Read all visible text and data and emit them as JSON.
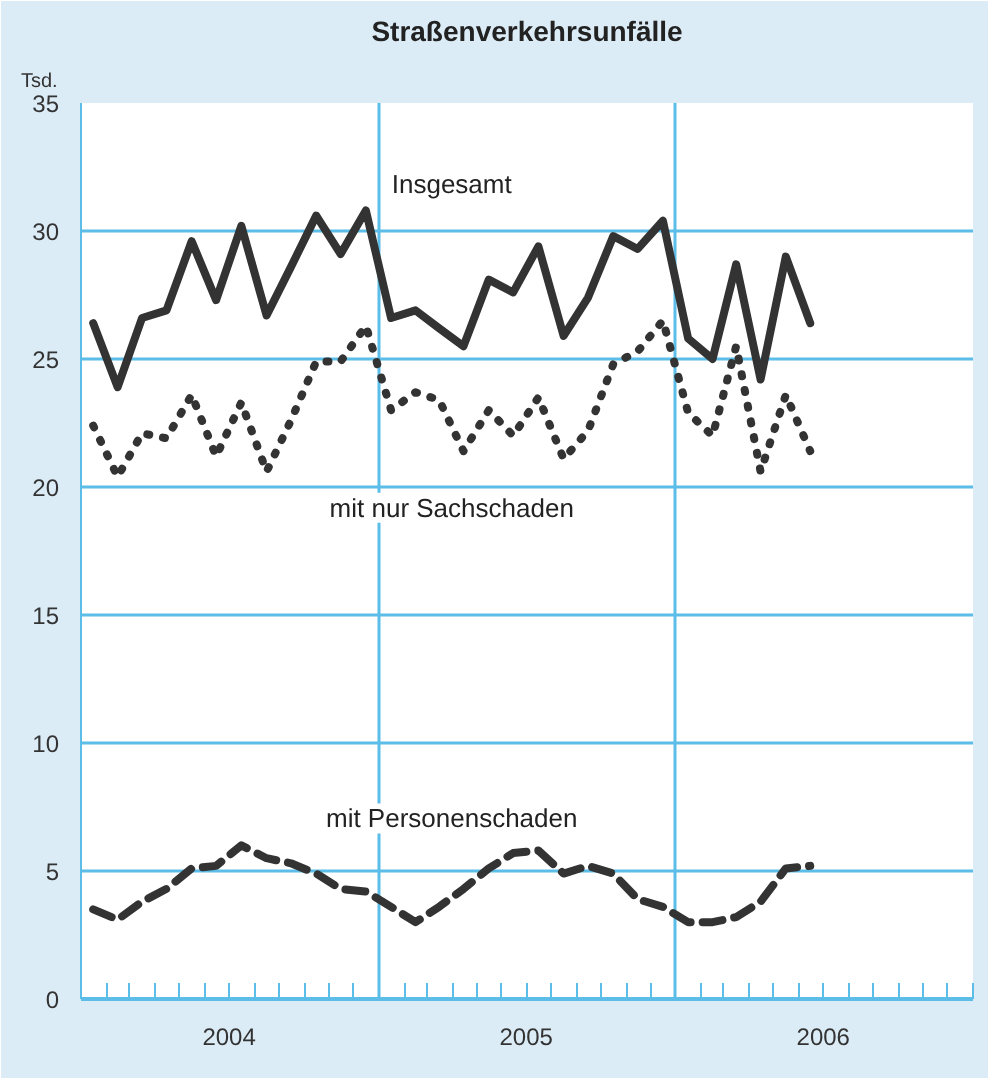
{
  "chart_data": {
    "type": "line",
    "title": "Straßenverkehrsunfälle",
    "ylabel": "Tsd.",
    "x": [
      "2004-01-16",
      "2004-02-15",
      "2004-03-16",
      "2004-04-15",
      "2004-05-16",
      "2004-06-15",
      "2004-07-16",
      "2004-08-16",
      "2004-09-15",
      "2004-10-16",
      "2004-11-15",
      "2004-12-16",
      "2005-01-16",
      "2005-02-15",
      "2005-03-16",
      "2005-04-15",
      "2005-05-16",
      "2005-06-15",
      "2005-07-16",
      "2005-08-16",
      "2005-09-15",
      "2005-10-16",
      "2005-11-15",
      "2005-12-16",
      "2006-01-16",
      "2006-02-15",
      "2006-03-16",
      "2006-04-15",
      "2006-05-16",
      "2006-06-15"
    ],
    "series": [
      {
        "name": "Insgesamt",
        "color": "#333333",
        "line_style": "solid",
        "values": [
          26.4,
          23.9,
          26.6,
          26.9,
          29.6,
          27.3,
          30.2,
          26.7,
          28.6,
          30.6,
          29.1,
          30.8,
          26.6,
          26.9,
          26.2,
          25.5,
          28.1,
          27.6,
          29.4,
          25.9,
          27.4,
          29.8,
          29.3,
          30.4,
          25.8,
          25.0,
          28.7,
          24.2,
          29.0,
          26.4
        ]
      },
      {
        "name": "mit nur Sachschaden",
        "color": "#333333",
        "line_style": "dotted",
        "values": [
          22.4,
          20.4,
          22.1,
          21.9,
          23.6,
          21.2,
          23.3,
          20.6,
          22.6,
          24.9,
          24.9,
          26.3,
          23.0,
          23.7,
          23.4,
          21.4,
          23.0,
          22.0,
          23.5,
          21.1,
          22.2,
          24.8,
          25.3,
          26.5,
          22.9,
          22.0,
          25.5,
          20.6,
          23.6,
          21.4
        ]
      },
      {
        "name": "mit Personenschaden",
        "color": "#333333",
        "line_style": "dashed",
        "values": [
          3.5,
          3.1,
          3.8,
          4.3,
          5.1,
          5.2,
          6.0,
          5.5,
          5.3,
          4.9,
          4.3,
          4.2,
          3.6,
          3.0,
          3.6,
          4.3,
          5.1,
          5.7,
          5.8,
          4.9,
          5.2,
          4.9,
          3.9,
          3.6,
          3.0,
          3.0,
          3.2,
          3.8,
          5.1,
          5.2
        ]
      }
    ],
    "xlim": [
      "2004-01-01",
      "2007-01-01"
    ],
    "xticks": [
      {
        "value": "2004-07-01",
        "label": "2004"
      },
      {
        "value": "2005-01-01",
        "label": null
      },
      {
        "value": "2005-07-01",
        "label": "2005"
      },
      {
        "value": "2006-01-01",
        "label": null
      },
      {
        "value": "2006-07-01",
        "label": "2006"
      }
    ],
    "ylim": [
      0,
      35
    ],
    "yticks": [
      0,
      5,
      10,
      15,
      20,
      25,
      30,
      35
    ],
    "grid": true,
    "marker": "none"
  }
}
